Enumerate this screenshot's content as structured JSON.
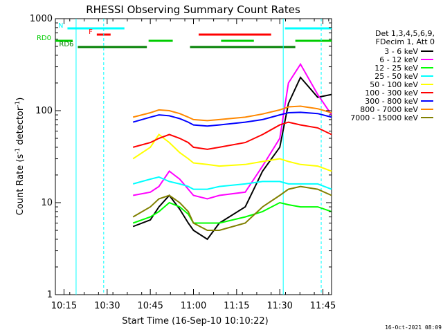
{
  "chart_data": {
    "type": "line",
    "title": "RHESSI Observing Summary Count Rates",
    "xlabel": "Start Time (16-Sep-10 10:10:22)",
    "ylabel": "Count Rate (s",
    "ylabel_sup": "-1",
    "ylabel_tail": " detector",
    "ylabel_end": ")",
    "xlim": [
      10.2,
      11.8
    ],
    "ylim": [
      1,
      1000
    ],
    "yscale": "log",
    "x_ticks": [
      "10:15",
      "10:30",
      "10:45",
      "11:00",
      "11:15",
      "11:30",
      "11:45"
    ],
    "y_ticks": [
      "1",
      "10",
      "100",
      "1000"
    ],
    "legend_header": [
      "Det 1,3,4,5,6,9,",
      "FDecim 1, Att 0"
    ],
    "legend_position": "right",
    "series": [
      {
        "name": "3 - 6 keV",
        "color": "#000000",
        "points": [
          [
            10.65,
            5.5
          ],
          [
            10.75,
            6.5
          ],
          [
            10.8,
            9
          ],
          [
            10.86,
            12
          ],
          [
            10.92,
            8.5
          ],
          [
            10.97,
            6
          ],
          [
            11.0,
            5
          ],
          [
            11.08,
            4
          ],
          [
            11.15,
            6
          ],
          [
            11.3,
            9
          ],
          [
            11.4,
            22
          ],
          [
            11.5,
            40
          ],
          [
            11.55,
            120
          ],
          [
            11.62,
            230
          ],
          [
            11.72,
            140
          ],
          [
            11.8,
            150
          ]
        ]
      },
      {
        "name": "6 - 12 keV",
        "color": "#ff00ff",
        "points": [
          [
            10.65,
            12
          ],
          [
            10.75,
            13
          ],
          [
            10.8,
            15
          ],
          [
            10.86,
            22
          ],
          [
            10.92,
            18
          ],
          [
            10.97,
            14
          ],
          [
            11.0,
            12
          ],
          [
            11.08,
            11
          ],
          [
            11.15,
            12
          ],
          [
            11.3,
            13
          ],
          [
            11.4,
            25
          ],
          [
            11.5,
            50
          ],
          [
            11.55,
            200
          ],
          [
            11.62,
            320
          ],
          [
            11.72,
            150
          ],
          [
            11.8,
            90
          ]
        ]
      },
      {
        "name": "12 - 25 keV",
        "color": "#00ff00",
        "points": [
          [
            10.65,
            6
          ],
          [
            10.75,
            7
          ],
          [
            10.8,
            8
          ],
          [
            10.86,
            10
          ],
          [
            10.92,
            9
          ],
          [
            10.97,
            7.5
          ],
          [
            11.0,
            6
          ],
          [
            11.08,
            6
          ],
          [
            11.15,
            6
          ],
          [
            11.3,
            7
          ],
          [
            11.4,
            8
          ],
          [
            11.5,
            10
          ],
          [
            11.55,
            9.5
          ],
          [
            11.62,
            9
          ],
          [
            11.72,
            9
          ],
          [
            11.8,
            8
          ]
        ]
      },
      {
        "name": "25 - 50 keV",
        "color": "#00ffff",
        "points": [
          [
            10.65,
            16
          ],
          [
            10.75,
            18
          ],
          [
            10.8,
            19
          ],
          [
            10.86,
            17
          ],
          [
            10.92,
            16
          ],
          [
            10.97,
            15
          ],
          [
            11.0,
            14
          ],
          [
            11.08,
            14
          ],
          [
            11.15,
            15
          ],
          [
            11.3,
            16
          ],
          [
            11.4,
            17
          ],
          [
            11.5,
            17
          ],
          [
            11.55,
            16
          ],
          [
            11.62,
            16
          ],
          [
            11.72,
            16
          ],
          [
            11.8,
            14
          ]
        ]
      },
      {
        "name": "50 - 100 keV",
        "color": "#ffff00",
        "points": [
          [
            10.65,
            30
          ],
          [
            10.75,
            40
          ],
          [
            10.8,
            55
          ],
          [
            10.86,
            45
          ],
          [
            10.92,
            35
          ],
          [
            10.97,
            30
          ],
          [
            11.0,
            27
          ],
          [
            11.08,
            26
          ],
          [
            11.15,
            25
          ],
          [
            11.3,
            26
          ],
          [
            11.4,
            28
          ],
          [
            11.5,
            30
          ],
          [
            11.55,
            28
          ],
          [
            11.62,
            26
          ],
          [
            11.72,
            25
          ],
          [
            11.8,
            22
          ]
        ]
      },
      {
        "name": "100 - 300 keV",
        "color": "#ff0000",
        "points": [
          [
            10.65,
            40
          ],
          [
            10.75,
            45
          ],
          [
            10.8,
            50
          ],
          [
            10.86,
            55
          ],
          [
            10.92,
            50
          ],
          [
            10.97,
            45
          ],
          [
            11.0,
            40
          ],
          [
            11.08,
            38
          ],
          [
            11.15,
            40
          ],
          [
            11.3,
            45
          ],
          [
            11.4,
            55
          ],
          [
            11.5,
            70
          ],
          [
            11.55,
            75
          ],
          [
            11.62,
            70
          ],
          [
            11.72,
            65
          ],
          [
            11.8,
            55
          ]
        ]
      },
      {
        "name": "300 - 800 keV",
        "color": "#0000ff",
        "points": [
          [
            10.65,
            75
          ],
          [
            10.75,
            85
          ],
          [
            10.8,
            90
          ],
          [
            10.86,
            88
          ],
          [
            10.92,
            82
          ],
          [
            10.97,
            75
          ],
          [
            11.0,
            70
          ],
          [
            11.08,
            68
          ],
          [
            11.15,
            70
          ],
          [
            11.3,
            75
          ],
          [
            11.4,
            80
          ],
          [
            11.5,
            90
          ],
          [
            11.55,
            95
          ],
          [
            11.62,
            96
          ],
          [
            11.72,
            93
          ],
          [
            11.8,
            85
          ]
        ]
      },
      {
        "name": "800 - 7000 keV",
        "color": "#ff8800",
        "points": [
          [
            10.65,
            85
          ],
          [
            10.75,
            95
          ],
          [
            10.8,
            102
          ],
          [
            10.86,
            100
          ],
          [
            10.92,
            93
          ],
          [
            10.97,
            85
          ],
          [
            11.0,
            80
          ],
          [
            11.08,
            78
          ],
          [
            11.15,
            80
          ],
          [
            11.3,
            85
          ],
          [
            11.4,
            92
          ],
          [
            11.5,
            102
          ],
          [
            11.55,
            110
          ],
          [
            11.62,
            112
          ],
          [
            11.72,
            105
          ],
          [
            11.8,
            95
          ]
        ]
      },
      {
        "name": "7000 - 15000 keV",
        "color": "#808000",
        "points": [
          [
            10.65,
            7
          ],
          [
            10.75,
            9
          ],
          [
            10.8,
            11
          ],
          [
            10.86,
            12
          ],
          [
            10.92,
            10
          ],
          [
            10.97,
            8
          ],
          [
            11.0,
            6
          ],
          [
            11.08,
            5
          ],
          [
            11.15,
            5
          ],
          [
            11.3,
            6
          ],
          [
            11.4,
            9
          ],
          [
            11.5,
            12
          ],
          [
            11.55,
            14
          ],
          [
            11.62,
            15
          ],
          [
            11.72,
            14
          ],
          [
            11.8,
            12
          ]
        ]
      }
    ],
    "state_bars": [
      {
        "label": "N",
        "color": "#00ffff",
        "segments": [
          [
            10.27,
            10.6
          ],
          [
            11.53,
            11.8
          ]
        ]
      },
      {
        "label": "F",
        "color": "#ff0000",
        "segments": [
          [
            10.44,
            10.52
          ],
          [
            11.03,
            11.45
          ]
        ]
      },
      {
        "label": "RD0",
        "color": "#00cc00",
        "segments": [
          [
            10.2,
            10.3
          ],
          [
            10.74,
            10.88
          ],
          [
            11.16,
            11.35
          ],
          [
            11.59,
            11.8
          ]
        ]
      },
      {
        "label": "RD6",
        "color": "#008000",
        "segments": [
          [
            10.33,
            10.73
          ],
          [
            10.98,
            11.59
          ]
        ]
      }
    ],
    "vlines_solid": [
      10.32,
      11.52
    ],
    "vlines_dashed": [
      10.48,
      11.74
    ]
  },
  "footer_date": "16-Oct-2021 08:09"
}
